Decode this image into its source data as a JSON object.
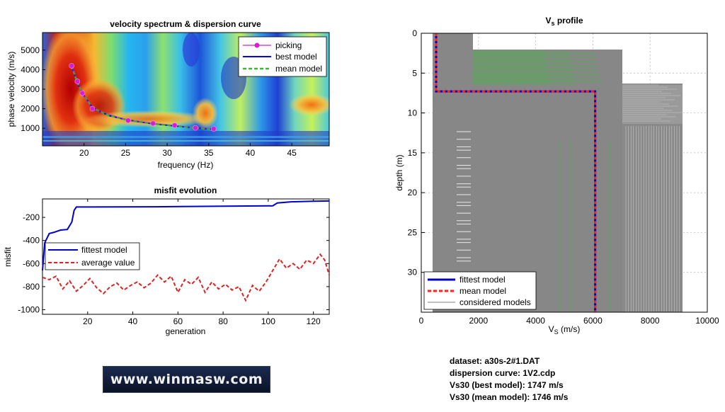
{
  "chart_data": [
    {
      "type": "heatmap",
      "title": "velocity spectrum & dispersion curve",
      "xlabel": "frequency (Hz)",
      "ylabel": "phase velocity (m/s)",
      "xlim": [
        15,
        49.5
      ],
      "ylim": [
        100,
        5900
      ],
      "xticks": [
        20,
        25,
        30,
        35,
        40,
        45
      ],
      "yticks": [
        1000,
        2000,
        3000,
        4000,
        5000
      ],
      "legend_position": "top-right",
      "legend": [
        "picking",
        "best model",
        "mean model"
      ],
      "colors": {
        "picking": "#d020d0",
        "best_model": "#0000ff",
        "mean_model": "#22c422"
      },
      "series": [
        {
          "name": "picking",
          "x": [
            18.5,
            19.2,
            19.8,
            21.0,
            25.3,
            28.3,
            30.9,
            33.4,
            35.6
          ],
          "y": [
            4200,
            3400,
            2800,
            2000,
            1400,
            1250,
            1150,
            1020,
            970
          ]
        },
        {
          "name": "best model",
          "x": [
            18.5,
            19.2,
            19.8,
            21.0,
            23.0,
            25.3,
            28.3,
            30.9,
            33.4,
            35.6
          ],
          "y": [
            4200,
            3350,
            2800,
            2050,
            1650,
            1420,
            1230,
            1120,
            1020,
            950
          ]
        },
        {
          "name": "mean model",
          "x": [
            18.5,
            19.2,
            19.8,
            21.0,
            23.0,
            25.3,
            28.3,
            30.9,
            33.4,
            35.6
          ],
          "y": [
            4200,
            3350,
            2800,
            2050,
            1650,
            1420,
            1230,
            1120,
            1020,
            950
          ]
        }
      ]
    },
    {
      "type": "line",
      "title": "misfit evolution",
      "xlabel": "generation",
      "ylabel": "misfit",
      "xlim": [
        0,
        127
      ],
      "ylim": [
        -1040,
        -40
      ],
      "xticks": [
        20,
        40,
        60,
        80,
        100,
        120
      ],
      "yticks": [
        -200,
        -400,
        -600,
        -800,
        -1000
      ],
      "legend_position": "middle-left",
      "legend": [
        "fittest model",
        "average value"
      ],
      "colors": {
        "fittest": "#0000cc",
        "average": "#dd2222"
      },
      "series": [
        {
          "name": "fittest model",
          "x": [
            0,
            1,
            2,
            3,
            5,
            8,
            11,
            13,
            14,
            15,
            50,
            102,
            104,
            110,
            120,
            127
          ],
          "y": [
            -660,
            -420,
            -380,
            -340,
            -330,
            -310,
            -305,
            -240,
            -140,
            -110,
            -108,
            -100,
            -75,
            -65,
            -60,
            -58
          ]
        },
        {
          "name": "average value",
          "x": [
            0,
            3,
            6,
            9,
            12,
            15,
            18,
            21,
            24,
            27,
            30,
            33,
            36,
            39,
            42,
            45,
            48,
            51,
            54,
            57,
            60,
            63,
            66,
            69,
            72,
            75,
            78,
            81,
            84,
            87,
            90,
            93,
            96,
            99,
            102,
            105,
            108,
            111,
            114,
            117,
            120,
            123,
            125,
            127
          ],
          "y": [
            -720,
            -740,
            -710,
            -820,
            -750,
            -840,
            -790,
            -730,
            -810,
            -860,
            -800,
            -770,
            -830,
            -790,
            -760,
            -810,
            -770,
            -700,
            -760,
            -710,
            -850,
            -740,
            -780,
            -720,
            -850,
            -760,
            -820,
            -780,
            -830,
            -800,
            -920,
            -790,
            -840,
            -760,
            -660,
            -560,
            -640,
            -600,
            -650,
            -570,
            -600,
            -520,
            -570,
            -700
          ]
        }
      ]
    },
    {
      "type": "line",
      "title": "V_s profile",
      "title_main": "V",
      "title_sub": "s",
      "title_rest": " profile",
      "xlabel_main": "V",
      "xlabel_sub": "S",
      "xlabel_rest": " (m/s)",
      "ylabel": "depth (m)",
      "xlim": [
        0,
        10000
      ],
      "ylim": [
        0,
        35
      ],
      "y_reversed": true,
      "grid": true,
      "xticks": [
        0,
        2000,
        4000,
        6000,
        8000,
        10000
      ],
      "yticks": [
        0,
        5,
        10,
        15,
        20,
        25,
        30
      ],
      "legend_position": "bottom-left",
      "legend": [
        "fittest model",
        "mean model",
        "considered models"
      ],
      "colors": {
        "fittest": "#0000cc",
        "mean": "#ff2020",
        "considered": "#808080",
        "accent": "#22cc22"
      },
      "series": [
        {
          "name": "fittest model",
          "x": [
            520,
            520,
            6080,
            6080
          ],
          "y": [
            0,
            7.3,
            7.3,
            35
          ]
        },
        {
          "name": "mean model",
          "x": [
            520,
            520,
            6080,
            6080
          ],
          "y": [
            0,
            7.3,
            7.3,
            35
          ]
        },
        {
          "name": "considered models",
          "x_range": [
            400,
            9100
          ],
          "y_range": [
            0,
            35
          ]
        }
      ]
    }
  ],
  "info": {
    "dataset": "dataset: a30s-2#1.DAT",
    "dispersion": "dispersion curve: 1V2.cdp",
    "vs30_best": "Vs30 (best model): 1747 m/s",
    "vs30_mean": "Vs30 (mean model): 1746 m/s"
  },
  "logo": {
    "text": "www.winmasw.com"
  }
}
